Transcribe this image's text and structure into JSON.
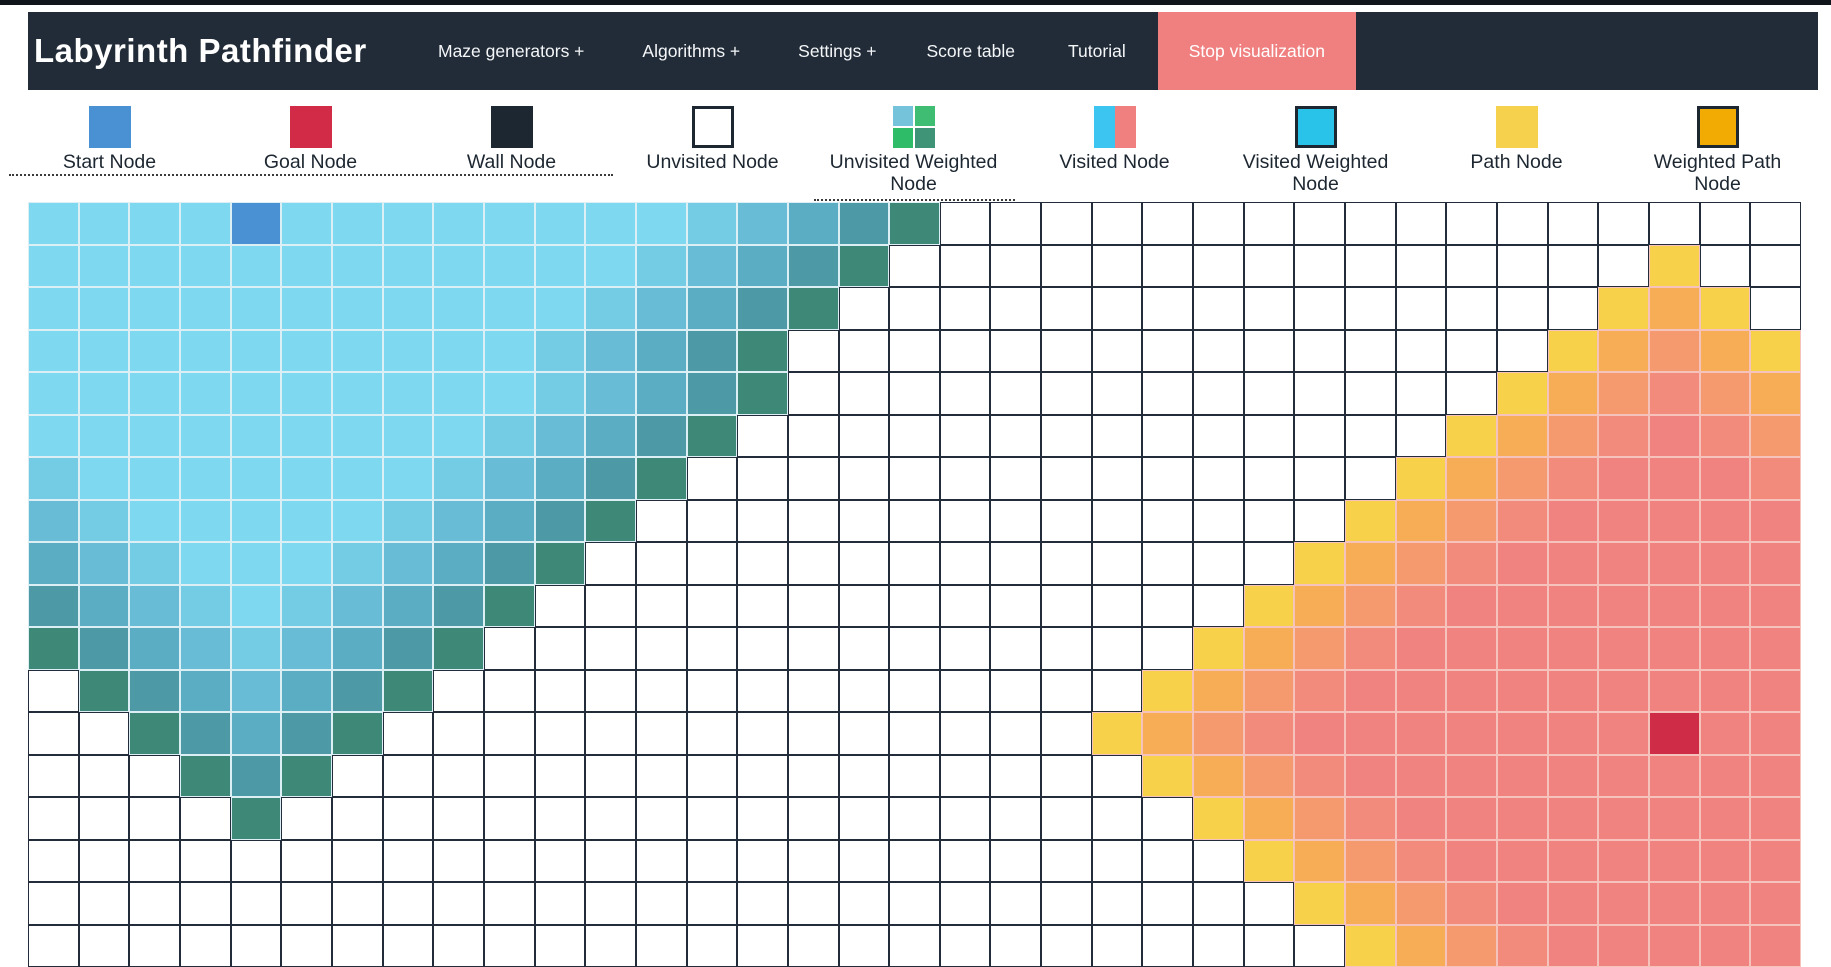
{
  "navbar": {
    "brand": "Labyrinth Pathfinder",
    "items": [
      {
        "label": "Maze generators +",
        "highlighted": false
      },
      {
        "label": "Algorithms +",
        "highlighted": false
      },
      {
        "label": "Settings +",
        "highlighted": false
      },
      {
        "label": "Score table",
        "highlighted": false
      },
      {
        "label": "Tutorial",
        "highlighted": false
      },
      {
        "label": "Stop visualization",
        "highlighted": true
      }
    ]
  },
  "legend": {
    "items": [
      {
        "label": "Start Node",
        "icon": "start-node-swatch",
        "type": "solid",
        "colors": [
          "#4a91d4"
        ]
      },
      {
        "label": "Goal Node",
        "icon": "goal-node-swatch",
        "type": "solid",
        "colors": [
          "#d22b47"
        ]
      },
      {
        "label": "Wall Node",
        "icon": "wall-node-swatch",
        "type": "solid",
        "colors": [
          "#1d2731"
        ]
      },
      {
        "label": "Unvisited Node",
        "icon": "unvisited-node-swatch",
        "type": "bordered",
        "colors": [
          "#ffffff"
        ]
      },
      {
        "label": "Unvisited Weighted Node",
        "icon": "unvisited-weighted-node-swatch",
        "type": "quad",
        "colors": [
          "#74c3da",
          "#3fbd72",
          "#2fbc68",
          "#3f9377"
        ]
      },
      {
        "label": "Visited Node",
        "icon": "visited-node-swatch",
        "type": "split",
        "colors": [
          "#3bc5f0",
          "#f08080"
        ]
      },
      {
        "label": "Visited Weighted Node",
        "icon": "visited-weighted-node-swatch",
        "type": "bordered",
        "colors": [
          "#29c3ea"
        ]
      },
      {
        "label": "Path Node",
        "icon": "path-node-swatch",
        "type": "solid",
        "colors": [
          "#f6d14d"
        ]
      },
      {
        "label": "Weighted Path Node",
        "icon": "weighted-path-node-swatch",
        "type": "bordered",
        "colors": [
          "#f2ab02"
        ]
      }
    ]
  },
  "grid": {
    "cols": 35,
    "rows": 18,
    "start_cell": {
      "col": 4,
      "row": 0
    },
    "goal_cell": {
      "col": 32,
      "row": 12
    },
    "cell_fill": {
      ".": "#ffffff",
      "a": "#7ed8f0",
      "b": "#73cbe4",
      "c": "#68bcd5",
      "d": "#5badc3",
      "e": "#4d9aa6",
      "f": "#3e8877",
      "S": "#4a91d4",
      "Y": "#f8d14b",
      "O": "#f6ad55",
      "P": "#f49a6e",
      "Q": "#f28b7b",
      "R": "#f0837f",
      "G": "#cf2c48"
    },
    "cell_border": {
      ".": "#232c3a",
      "a": "#dbeff5",
      "b": "#dbeff5",
      "c": "#dbeff5",
      "d": "#dbeff5",
      "e": "#dbeff5",
      "f": "#dbeff5",
      "S": "#dbeff5",
      "Y": "#f6c2bc",
      "O": "#f6c2bc",
      "P": "#f6c2bc",
      "Q": "#f6c2bc",
      "R": "#f6c2bc",
      "G": "#f6c2bc"
    },
    "cells": [
      "aaaaSaaaaaaaabcdef.................",
      "aaaaaaaaaaaabcdef...............Y..",
      "aaaaaaaaaaabcdef...............YOY.",
      "aaaaaaaaaabcdef...............YOPOY",
      "aaaaaaaaaabcdef..............YOPQPO",
      "aaaaaaaaabcdef..............YOPQRQP",
      "baaaaaaabcdef..............YOPQRRRQ",
      "cbaaaaabcdef..............YOPQRRRRR",
      "dcbaaabcdef..............YOPQRRRRRR",
      "edcbabcdef..............YOPQRRRRRRR",
      "fedcbcdef..............YOPQRRRRRRRR",
      ".fedcdef..............YOPQRRRRRRRRR",
      "..fedef..............YOPQRRRRRRRGRR",
      "...fef................YOPQRRRRRRRRR",
      "....f..................YOPQRRRRRRRR",
      "........................YOPQRRRRRRR",
      ".........................YOPQRRRRRR",
      "..........................YOPQRRRRR"
    ]
  }
}
